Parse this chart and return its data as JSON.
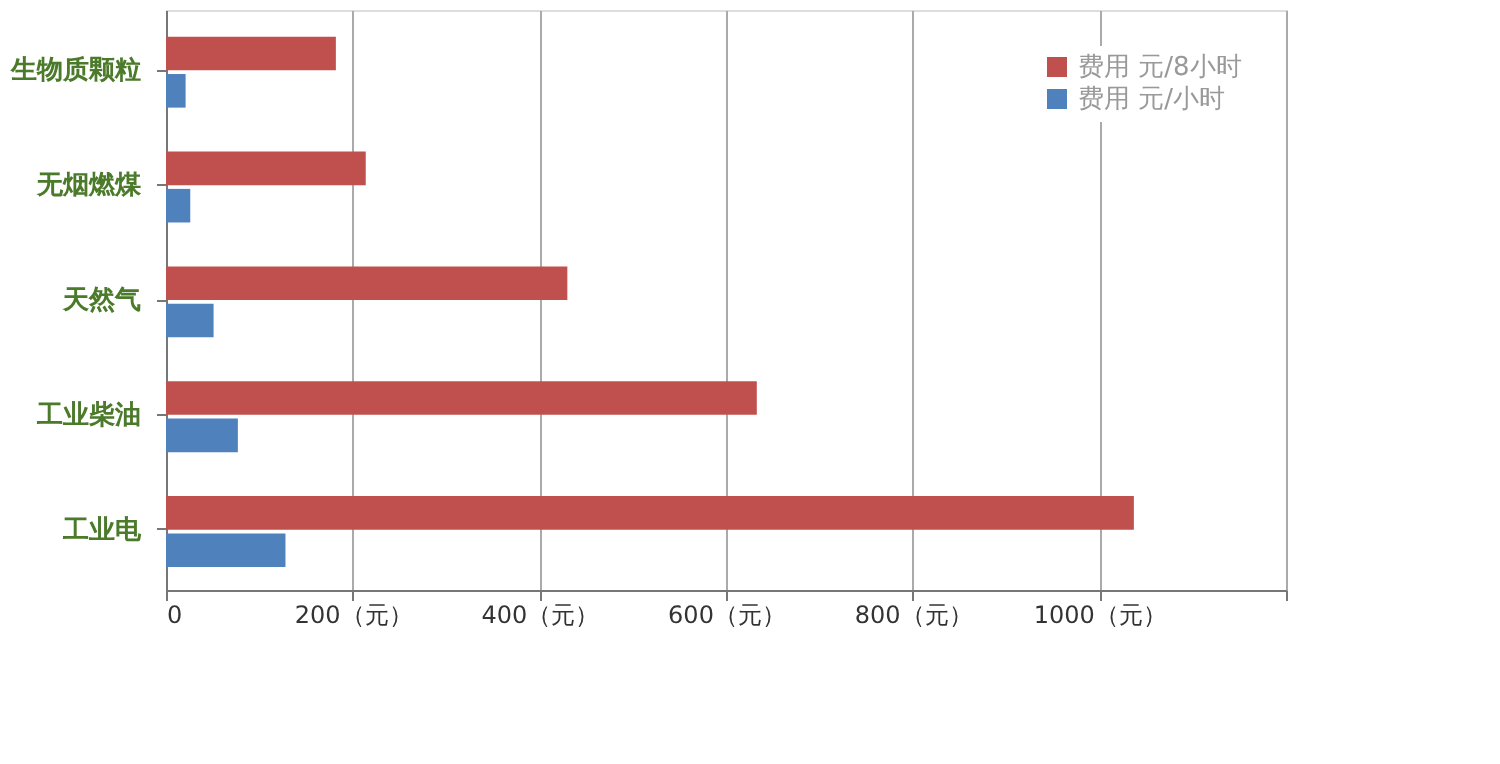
{
  "chart_data": {
    "type": "bar",
    "orientation": "horizontal",
    "categories": [
      "生物质颗粒",
      "无烟燃煤",
      "天然气",
      "工业柴油",
      "工业电"
    ],
    "series": [
      {
        "name": "费用 元/8小时",
        "color": "#c0504d",
        "values": [
          182,
          214,
          430,
          633,
          1037
        ]
      },
      {
        "name": "费用 元/小时",
        "color": "#4f81bd",
        "values": [
          21,
          26,
          51,
          77,
          128
        ]
      }
    ],
    "xlim": [
      0,
      1200
    ],
    "xticks": [
      0,
      {
        "value": 200,
        "label": "200（元）"
      },
      {
        "value": 400,
        "label": "400（元）"
      },
      {
        "value": 600,
        "label": "600（元）"
      },
      {
        "value": 800,
        "label": "800（元）"
      },
      {
        "value": 1000,
        "label": "1000（元）"
      },
      {
        "value": 1200,
        "label": null
      }
    ],
    "grid": "x",
    "legend": "top right"
  }
}
